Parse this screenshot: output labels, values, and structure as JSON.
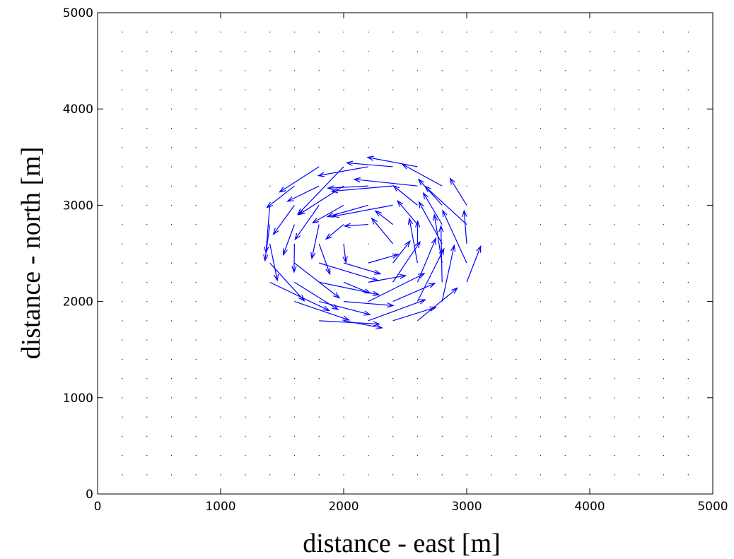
{
  "chart_data": {
    "type": "quiver",
    "xlabel": "distance - east [m]",
    "ylabel": "distance - north [m]",
    "xlim": [
      0,
      5000
    ],
    "ylim": [
      0,
      5000
    ],
    "xticks": [
      0,
      1000,
      2000,
      3000,
      4000,
      5000
    ],
    "yticks": [
      0,
      1000,
      2000,
      3000,
      4000,
      5000
    ],
    "x_tick_labels": [
      "0",
      "1000",
      "2000",
      "3000",
      "4000",
      "5000"
    ],
    "y_tick_labels": [
      "0",
      "1000",
      "2000",
      "3000",
      "4000",
      "5000"
    ],
    "grid": false,
    "arrow_color": "#0000ff",
    "grid_points": {
      "x_start": 200,
      "x_end": 4800,
      "x_step": 200,
      "y_start": 200,
      "y_end": 4800,
      "y_step": 200
    },
    "vortex": {
      "center": [
        2200,
        2600
      ],
      "radius": 1000,
      "rotation": "counter-clockwise",
      "max_vector_length": 650
    }
  }
}
